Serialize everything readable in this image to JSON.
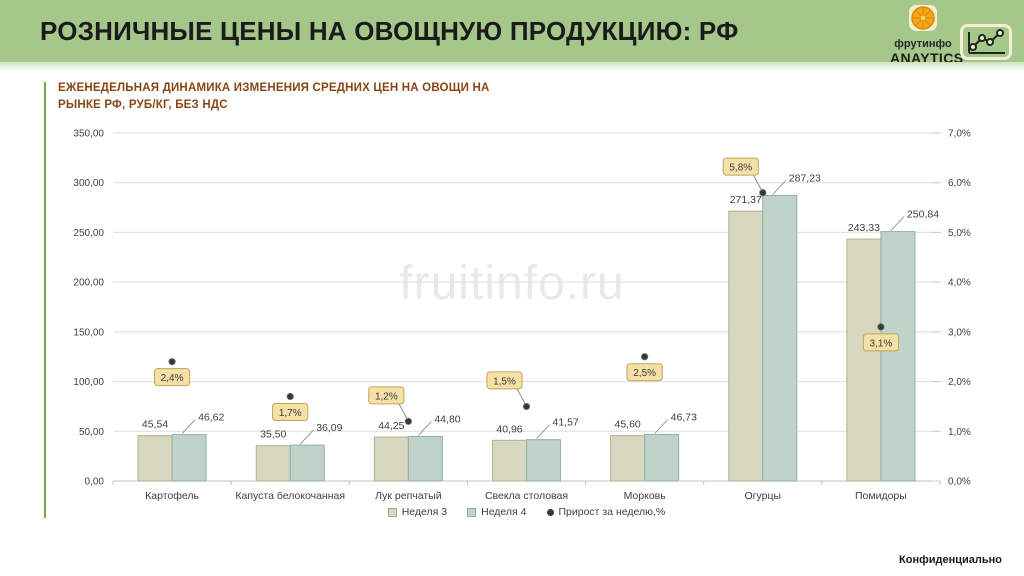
{
  "header": {
    "title": "РОЗНИЧНЫЕ ЦЕНЫ НА ОВОЩНУЮ ПРОДУКЦИЮ: РФ",
    "logo": {
      "brand": "фрутинфо",
      "sub": "ANAYTICS"
    }
  },
  "watermark": "fruitinfo.ru",
  "footer": {
    "confidential": "Конфиденциально"
  },
  "colors": {
    "header_green": "#a5c88a",
    "accent_green": "#76a452",
    "title_brown": "#8a4516",
    "week3_fill": "#d7d8bf",
    "week3_border": "#aeb08b",
    "week4_fill": "#c0d3ca",
    "week4_border": "#8fafa2",
    "callout_fill": "#f4e1a8",
    "callout_border": "#c2a35b",
    "dot": "#333d2e",
    "grid": "#dedede",
    "axis": "#c3c3c3",
    "label": "#3f3f3f"
  },
  "chart_data": {
    "type": "bar",
    "title": "ЕЖЕНЕДЕЛЬНАЯ ДИНАМИКА ИЗМЕНЕНИЯ СРЕДНИХ ЦЕН НА ОВОЩИ НА РЫНКЕ РФ, РУБ/КГ, БЕЗ НДС",
    "categories": [
      "Картофель",
      "Капуста белокочанная",
      "Лук репчатый",
      "Свекла столовая",
      "Морковь",
      "Огурцы",
      "Помидоры"
    ],
    "series": [
      {
        "name": "Неделя 3",
        "type": "bar",
        "values": [
          45.54,
          35.5,
          44.25,
          40.96,
          45.6,
          271.37,
          243.33
        ],
        "labels": [
          "45,54",
          "35,50",
          "44,25",
          "40,96",
          "45,60",
          "271,37",
          "243,33"
        ]
      },
      {
        "name": "Неделя 4",
        "type": "bar",
        "values": [
          46.62,
          36.09,
          44.8,
          41.57,
          46.73,
          287.23,
          250.84
        ],
        "labels": [
          "46,62",
          "36,09",
          "44,80",
          "41,57",
          "46,73",
          "287,23",
          "250,84"
        ]
      },
      {
        "name": "Прирост за неделю,%",
        "type": "point",
        "values": [
          2.4,
          1.7,
          1.2,
          1.5,
          2.5,
          5.8,
          3.1
        ],
        "labels": [
          "2,4%",
          "1,7%",
          "1,2%",
          "1,5%",
          "2,5%",
          "5,8%",
          "3,1%"
        ],
        "callout_pos": [
          "below",
          "below",
          "above",
          "above",
          "below",
          "above",
          "below"
        ]
      }
    ],
    "y_left": {
      "min": 0,
      "max": 350,
      "step": 50,
      "ticks": [
        "0,00",
        "50,00",
        "100,00",
        "150,00",
        "200,00",
        "250,00",
        "300,00",
        "350,00"
      ]
    },
    "y_right": {
      "min": 0,
      "max": 7,
      "step": 1,
      "ticks": [
        "0,0%",
        "1,0%",
        "2,0%",
        "3,0%",
        "4,0%",
        "5,0%",
        "6,0%",
        "7,0%"
      ]
    },
    "grid": true,
    "legend_position": "bottom"
  }
}
